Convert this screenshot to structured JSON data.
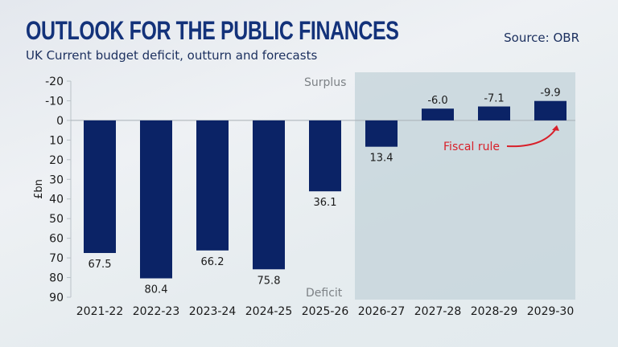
{
  "header": {
    "title": "OUTLOOK FOR THE PUBLIC FINANCES",
    "subtitle": "UK Current budget deficit, outturn and forecasts",
    "source": "Source: OBR"
  },
  "colors": {
    "bar": "#0b2366",
    "forecast_shade": "#c3d3da",
    "annotation": "#d8202a",
    "title": "#13327a"
  },
  "chart_data": {
    "type": "bar",
    "title": "OUTLOOK FOR THE PUBLIC FINANCES",
    "subtitle": "UK Current budget deficit, outturn and forecasts",
    "xlabel": "",
    "ylabel": "£bn",
    "y_inverted": true,
    "ylim": [
      -20,
      90
    ],
    "yticks": [
      -20,
      -10,
      0,
      10,
      20,
      30,
      40,
      50,
      60,
      70,
      80,
      90
    ],
    "categories": [
      "2021-22",
      "2022-23",
      "2023-24",
      "2024-25",
      "2025-26",
      "2026-27",
      "2027-28",
      "2028-29",
      "2029-30"
    ],
    "values": [
      67.5,
      80.4,
      66.2,
      75.8,
      36.1,
      13.4,
      -6.0,
      -7.1,
      -9.9
    ],
    "value_labels": [
      "67.5",
      "80.4",
      "66.2",
      "75.8",
      "36.1",
      "13.4",
      "-6.0",
      "-7.1",
      "-9.9"
    ],
    "forecast_start_category": "2026-27",
    "annotations": {
      "surplus_label": "Surplus",
      "deficit_label": "Deficit",
      "fiscal_rule": "Fiscal rule",
      "fiscal_rule_category": "2029-30"
    },
    "grid": false,
    "legend": "none"
  }
}
